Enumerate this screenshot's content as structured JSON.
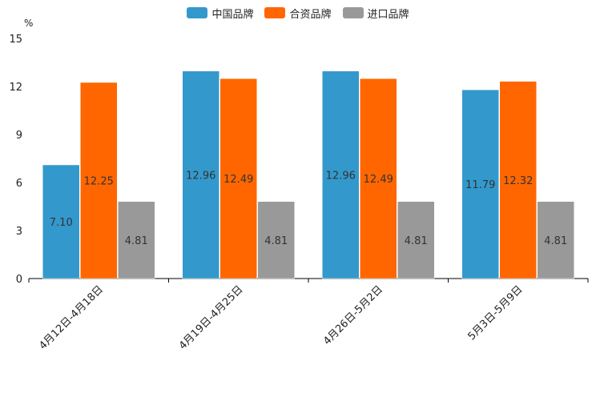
{
  "chart_data": {
    "type": "bar",
    "title": "",
    "ylabel": "%",
    "xlabel": "",
    "ylim": [
      0,
      15
    ],
    "yticks": [
      "0",
      "3",
      "6",
      "9",
      "12",
      "15"
    ],
    "categories": [
      "4月12日-4月18日",
      "4月19日-4月25日",
      "4月26日-5月2日",
      "5月3日-5月9日"
    ],
    "series": [
      {
        "name": "中国品牌",
        "color": "#3399cc",
        "values": [
          7.1,
          12.96,
          12.96,
          11.79
        ],
        "labels": [
          "7.10",
          "12.96",
          "12.96",
          "11.79"
        ]
      },
      {
        "name": "合资品牌",
        "color": "#ff6600",
        "values": [
          12.25,
          12.49,
          12.49,
          12.32
        ],
        "labels": [
          "12.25",
          "12.49",
          "12.49",
          "12.32"
        ]
      },
      {
        "name": "进口品牌",
        "color": "#999999",
        "values": [
          4.81,
          4.81,
          4.81,
          4.81
        ],
        "labels": [
          "4.81",
          "4.81",
          "4.81",
          "4.81"
        ]
      }
    ],
    "legend_position": "top-center",
    "grid": false
  }
}
